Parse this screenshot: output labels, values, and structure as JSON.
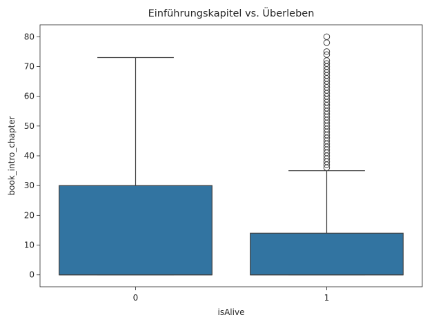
{
  "chart_data": {
    "type": "box",
    "title": "Einführungskapitel vs. Überleben",
    "xlabel": "isAlive",
    "ylabel": "book_intro_chapter",
    "categories": [
      "0",
      "1"
    ],
    "ylim": [
      -4,
      84
    ],
    "yticks": [
      0,
      10,
      20,
      30,
      40,
      50,
      60,
      70,
      80
    ],
    "grid": false,
    "box_color": "#3274a1",
    "line_color": "#3f3f3f",
    "boxes": [
      {
        "category": "0",
        "whisker_low": 0,
        "q1": 0,
        "median": 0,
        "q3": 30,
        "whisker_high": 73,
        "outliers": []
      },
      {
        "category": "1",
        "whisker_low": 0,
        "q1": 0,
        "median": 0,
        "q3": 14,
        "whisker_high": 35,
        "outliers": [
          36,
          37,
          38,
          39,
          40,
          41,
          42,
          43,
          44,
          45,
          46,
          47,
          48,
          49,
          50,
          51,
          52,
          53,
          54,
          55,
          56,
          57,
          58,
          59,
          60,
          61,
          62,
          63,
          64,
          65,
          66,
          67,
          68,
          69,
          70,
          71,
          72,
          74,
          75,
          78,
          80
        ]
      }
    ]
  }
}
